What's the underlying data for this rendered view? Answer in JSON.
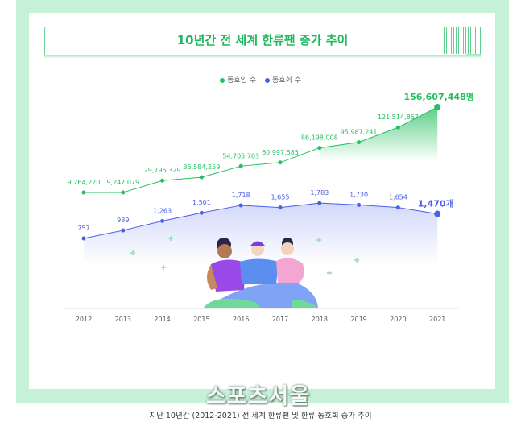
{
  "title": "10년간 전 세계 한류팬 증가 추이",
  "caption": "지난 10년간 (2012-2021) 전 세계 한류팬 및 한류 동호회 증가 추이",
  "watermark": "스포츠서울",
  "colors": {
    "members": "#22c05e",
    "clubs": "#4a5ee8",
    "background": "#c6f1d9"
  },
  "chart_data": {
    "type": "line",
    "title": "10년간 전 세계 한류팬 증가 추이",
    "categories": [
      "2012",
      "2013",
      "2014",
      "2015",
      "2016",
      "2017",
      "2018",
      "2019",
      "2020",
      "2021"
    ],
    "legend_placement": "top-center",
    "grid": false,
    "series": [
      {
        "name": "동호인 수",
        "values": [
          9264220,
          9247079,
          29795329,
          35584259,
          54705703,
          60997585,
          86198008,
          95987241,
          121514867,
          156607448
        ],
        "labels": [
          "9,264,220",
          "9,247,079",
          "29,795,329",
          "35,584,259",
          "54,705,703",
          "60,997,585",
          "86,198,008",
          "95,987,241",
          "121,514,867",
          "156,607,448명"
        ]
      },
      {
        "name": "동호회 수",
        "values": [
          757,
          989,
          1263,
          1501,
          1718,
          1655,
          1783,
          1730,
          1654,
          1470
        ],
        "labels": [
          "757",
          "989",
          "1,263",
          "1,501",
          "1,718",
          "1,655",
          "1,783",
          "1,730",
          "1,654",
          "1,470개"
        ]
      }
    ]
  }
}
